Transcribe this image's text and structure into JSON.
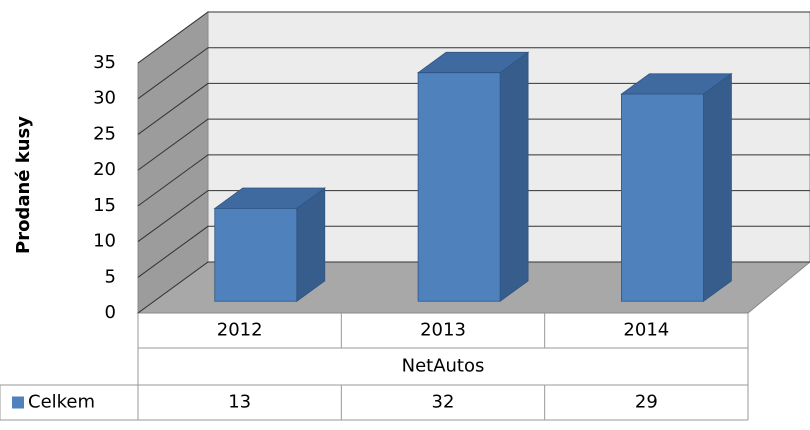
{
  "chart_data": {
    "type": "bar3d",
    "y_label": "Prodané kusy",
    "group_label": "NetAutos",
    "categories": [
      "2012",
      "2013",
      "2014"
    ],
    "series": [
      {
        "name": "Celkem",
        "color": "#4f81bd",
        "values": [
          13,
          32,
          29
        ]
      }
    ],
    "ylim": [
      0,
      35
    ],
    "yticks": [
      0,
      5,
      10,
      15,
      20,
      25,
      30,
      35
    ],
    "grid": true
  }
}
